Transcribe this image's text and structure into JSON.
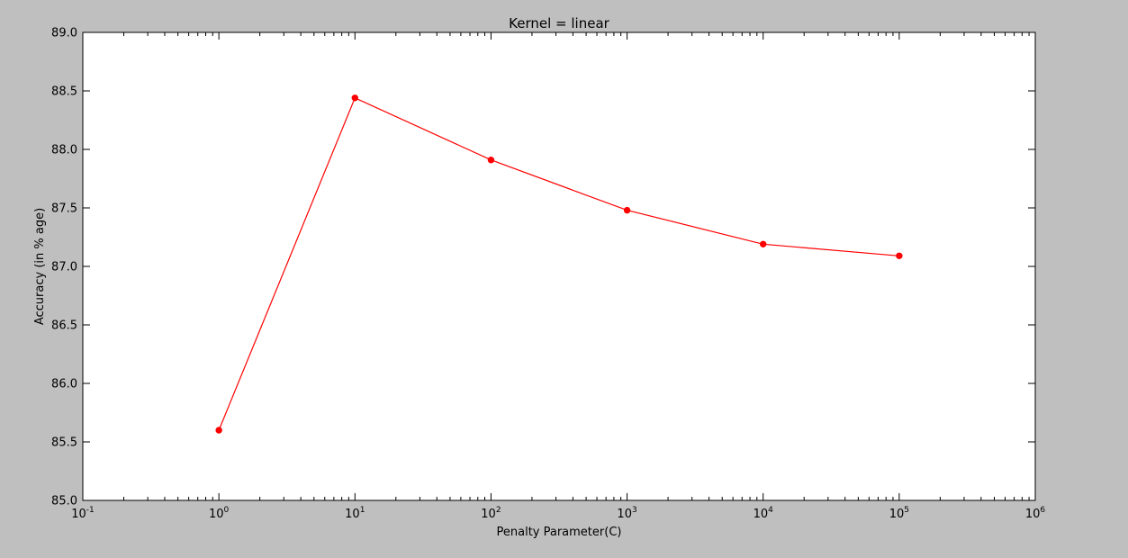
{
  "chart_data": {
    "type": "line",
    "title": "Kernel = linear",
    "xlabel": "Penalty Parameter(C)",
    "ylabel": "Accuracy (in % age)",
    "xscale": "log",
    "xlim": [
      0.1,
      1000000
    ],
    "ylim": [
      85.0,
      89.0
    ],
    "grid": false,
    "x_ticks": [
      {
        "value": 0.1,
        "base": "10",
        "exp": "-1"
      },
      {
        "value": 1,
        "base": "10",
        "exp": "0"
      },
      {
        "value": 10,
        "base": "10",
        "exp": "1"
      },
      {
        "value": 100,
        "base": "10",
        "exp": "2"
      },
      {
        "value": 1000,
        "base": "10",
        "exp": "3"
      },
      {
        "value": 10000,
        "base": "10",
        "exp": "4"
      },
      {
        "value": 100000,
        "base": "10",
        "exp": "5"
      },
      {
        "value": 1000000,
        "base": "10",
        "exp": "6"
      }
    ],
    "y_ticks": [
      "85.0",
      "85.5",
      "86.0",
      "86.5",
      "87.0",
      "87.5",
      "88.0",
      "88.5",
      "89.0"
    ],
    "series": [
      {
        "color": "#ff0000",
        "marker": "circle",
        "x": [
          1,
          10,
          100,
          1000,
          10000,
          100000
        ],
        "y": [
          85.6,
          88.44,
          87.91,
          87.48,
          87.19,
          87.09
        ]
      }
    ]
  }
}
